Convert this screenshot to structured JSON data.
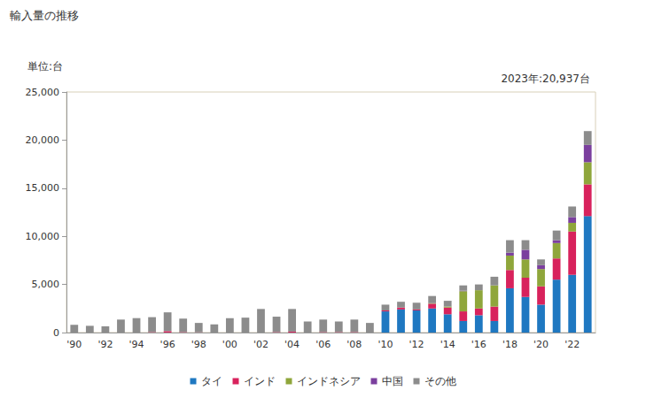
{
  "chart_data": {
    "type": "bar",
    "title": "輸入量の推移",
    "ylabel": "単位:台",
    "annotation": "2023年:20,937台",
    "stacked": true,
    "grid": false,
    "legend": "bottom",
    "categories": [
      "'90",
      null,
      "'92",
      null,
      "'94",
      null,
      "'96",
      null,
      "'98",
      null,
      "'00",
      null,
      "'02",
      null,
      "'04",
      null,
      "'06",
      null,
      "'08",
      null,
      "'10",
      null,
      "'12",
      null,
      "'14",
      null,
      "'16",
      null,
      "'18",
      null,
      "'20",
      null,
      "'22",
      null
    ],
    "series": [
      {
        "name": "タイ",
        "color": "#1f78c1",
        "values": [
          0,
          0,
          0,
          0,
          0,
          0,
          0,
          0,
          0,
          0,
          0,
          0,
          0,
          0,
          0,
          0,
          0,
          0,
          0,
          0,
          2200,
          2400,
          2300,
          2500,
          1900,
          1200,
          1800,
          1200,
          4600,
          3700,
          2900,
          5500,
          6000,
          12100
        ]
      },
      {
        "name": "インド",
        "color": "#d8225c",
        "values": [
          0,
          0,
          0,
          0,
          0,
          50,
          150,
          50,
          30,
          0,
          0,
          0,
          0,
          50,
          100,
          0,
          50,
          50,
          50,
          0,
          100,
          200,
          100,
          500,
          700,
          1000,
          700,
          1500,
          1900,
          2000,
          1900,
          2200,
          4500,
          3300
        ]
      },
      {
        "name": "インドネシア",
        "color": "#8fa63b",
        "values": [
          0,
          0,
          0,
          0,
          0,
          0,
          0,
          0,
          0,
          0,
          0,
          0,
          0,
          0,
          0,
          0,
          0,
          0,
          0,
          0,
          0,
          0,
          0,
          50,
          100,
          2100,
          1900,
          2200,
          1500,
          1900,
          1800,
          1600,
          900,
          2300
        ]
      },
      {
        "name": "中国",
        "color": "#7b3f9e",
        "values": [
          0,
          0,
          0,
          0,
          0,
          0,
          0,
          0,
          0,
          0,
          0,
          0,
          0,
          0,
          0,
          0,
          0,
          0,
          0,
          0,
          0,
          0,
          0,
          0,
          0,
          50,
          0,
          0,
          300,
          1000,
          400,
          300,
          600,
          1800
        ]
      },
      {
        "name": "その他",
        "color": "#8c8c8c",
        "values": [
          800,
          700,
          650,
          1350,
          1500,
          1550,
          1950,
          1400,
          970,
          850,
          1500,
          1550,
          2450,
          1600,
          2350,
          1150,
          1300,
          1100,
          1300,
          1000,
          600,
          600,
          700,
          750,
          600,
          550,
          600,
          900,
          1300,
          1000,
          600,
          1000,
          1100,
          1437
        ]
      }
    ],
    "ylim": [
      0,
      25000
    ],
    "yticks": [
      0,
      {
        "value": 5000,
        "label": "5,000"
      },
      {
        "value": 10000,
        "label": "10,000"
      },
      {
        "value": 15000,
        "label": "15,000"
      },
      {
        "value": 20000,
        "label": "20,000"
      },
      {
        "value": 25000,
        "label": "25,000"
      }
    ]
  }
}
